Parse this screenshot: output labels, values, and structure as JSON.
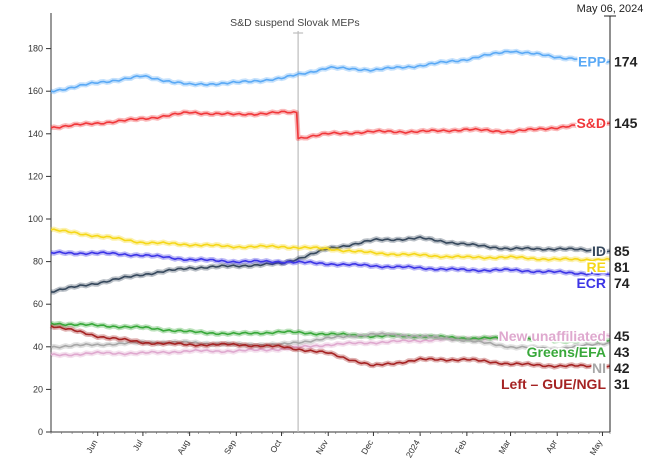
{
  "chart_data": {
    "type": "line",
    "title": "",
    "xlabel": "",
    "ylabel": "",
    "x_start": "2023-05-01",
    "x_end": "2024-05-06",
    "ylim": [
      0,
      190
    ],
    "yticks": [
      0,
      20,
      40,
      60,
      80,
      100,
      120,
      140,
      160,
      180
    ],
    "xticks": [
      {
        "label": "Jun",
        "date": "2023-06-01"
      },
      {
        "label": "Jul",
        "date": "2023-07-01"
      },
      {
        "label": "Aug",
        "date": "2023-08-01"
      },
      {
        "label": "Sep",
        "date": "2023-09-01"
      },
      {
        "label": "Oct",
        "date": "2023-10-01"
      },
      {
        "label": "Nov",
        "date": "2023-11-01"
      },
      {
        "label": "Dec",
        "date": "2023-12-01"
      },
      {
        "label": "2024",
        "date": "2024-01-01"
      },
      {
        "label": "Feb",
        "date": "2024-02-01"
      },
      {
        "label": "Mar",
        "date": "2024-03-01"
      },
      {
        "label": "Apr",
        "date": "2024-04-01"
      },
      {
        "label": "May",
        "date": "2024-05-01"
      }
    ],
    "annotation": {
      "label": "S&D suspend Slovak MEPs",
      "date": "2023-10-12"
    },
    "current_date_label": "May 06, 2024",
    "current_date": "2024-05-06",
    "grid": false,
    "legend": "inline-right",
    "series": [
      {
        "name": "EPP",
        "value": 174,
        "color": "#5aa9f5",
        "points": [
          [
            "2023-05-01",
            160
          ],
          [
            "2023-06-01",
            164
          ],
          [
            "2023-07-01",
            167
          ],
          [
            "2023-08-01",
            163
          ],
          [
            "2023-09-01",
            164
          ],
          [
            "2023-10-01",
            166
          ],
          [
            "2023-11-01",
            171
          ],
          [
            "2023-12-01",
            170
          ],
          [
            "2024-01-01",
            172
          ],
          [
            "2024-02-01",
            175
          ],
          [
            "2024-03-01",
            179
          ],
          [
            "2024-04-01",
            176
          ],
          [
            "2024-05-06",
            174
          ]
        ]
      },
      {
        "name": "S&D",
        "value": 145,
        "color": "#f0373a",
        "points": [
          [
            "2023-05-01",
            143
          ],
          [
            "2023-06-01",
            145
          ],
          [
            "2023-07-01",
            147
          ],
          [
            "2023-08-01",
            150
          ],
          [
            "2023-09-01",
            149
          ],
          [
            "2023-10-01",
            150
          ],
          [
            "2023-10-11",
            150
          ],
          [
            "2023-10-12",
            138
          ],
          [
            "2023-11-01",
            140
          ],
          [
            "2023-12-01",
            141
          ],
          [
            "2024-01-01",
            141
          ],
          [
            "2024-02-01",
            142
          ],
          [
            "2024-03-01",
            141
          ],
          [
            "2024-04-01",
            143
          ],
          [
            "2024-05-06",
            145
          ]
        ]
      },
      {
        "name": "ID",
        "value": 85,
        "color": "#36485c",
        "points": [
          [
            "2023-05-01",
            66
          ],
          [
            "2023-06-01",
            70
          ],
          [
            "2023-07-01",
            74
          ],
          [
            "2023-08-01",
            77
          ],
          [
            "2023-09-01",
            78
          ],
          [
            "2023-10-01",
            79
          ],
          [
            "2023-11-01",
            86
          ],
          [
            "2023-12-01",
            90
          ],
          [
            "2024-01-01",
            91
          ],
          [
            "2024-02-01",
            88
          ],
          [
            "2024-03-01",
            86
          ],
          [
            "2024-04-01",
            86
          ],
          [
            "2024-05-06",
            85
          ]
        ]
      },
      {
        "name": "RE",
        "value": 81,
        "color": "#f5d718",
        "points": [
          [
            "2023-05-01",
            95
          ],
          [
            "2023-06-01",
            92
          ],
          [
            "2023-07-01",
            89
          ],
          [
            "2023-08-01",
            88
          ],
          [
            "2023-09-01",
            87
          ],
          [
            "2023-10-01",
            87
          ],
          [
            "2023-11-01",
            86
          ],
          [
            "2023-12-01",
            84
          ],
          [
            "2024-01-01",
            83
          ],
          [
            "2024-02-01",
            82
          ],
          [
            "2024-03-01",
            82
          ],
          [
            "2024-04-01",
            81
          ],
          [
            "2024-05-06",
            81
          ]
        ]
      },
      {
        "name": "ECR",
        "value": 74,
        "color": "#3d35e6",
        "points": [
          [
            "2023-05-01",
            84
          ],
          [
            "2023-06-01",
            84
          ],
          [
            "2023-07-01",
            83
          ],
          [
            "2023-08-01",
            81
          ],
          [
            "2023-09-01",
            80
          ],
          [
            "2023-10-01",
            80
          ],
          [
            "2023-11-01",
            79
          ],
          [
            "2023-12-01",
            78
          ],
          [
            "2024-01-01",
            77
          ],
          [
            "2024-02-01",
            76
          ],
          [
            "2024-03-01",
            76
          ],
          [
            "2024-04-01",
            75
          ],
          [
            "2024-05-06",
            74
          ]
        ]
      },
      {
        "name": "New unaffiliated",
        "value": 45,
        "color": "#dfa9cf",
        "points": [
          [
            "2023-05-01",
            36
          ],
          [
            "2023-06-01",
            37
          ],
          [
            "2023-07-01",
            37
          ],
          [
            "2023-08-01",
            38
          ],
          [
            "2023-09-01",
            38
          ],
          [
            "2023-10-01",
            39
          ],
          [
            "2023-11-01",
            41
          ],
          [
            "2023-12-01",
            42
          ],
          [
            "2024-01-01",
            43
          ],
          [
            "2024-02-01",
            44
          ],
          [
            "2024-03-01",
            44
          ],
          [
            "2024-04-01",
            45
          ],
          [
            "2024-05-06",
            45
          ]
        ]
      },
      {
        "name": "Greens/EFA",
        "value": 43,
        "color": "#38a83a",
        "points": [
          [
            "2023-05-01",
            51
          ],
          [
            "2023-06-01",
            50
          ],
          [
            "2023-07-01",
            49
          ],
          [
            "2023-08-01",
            47
          ],
          [
            "2023-09-01",
            46
          ],
          [
            "2023-10-01",
            47
          ],
          [
            "2023-11-01",
            46
          ],
          [
            "2023-12-01",
            45
          ],
          [
            "2024-01-01",
            45
          ],
          [
            "2024-02-01",
            44
          ],
          [
            "2024-03-01",
            44
          ],
          [
            "2024-04-01",
            43
          ],
          [
            "2024-05-06",
            43
          ]
        ]
      },
      {
        "name": "NI",
        "value": 42,
        "color": "#a7a7a7",
        "points": [
          [
            "2023-05-01",
            40
          ],
          [
            "2023-06-01",
            41
          ],
          [
            "2023-07-01",
            42
          ],
          [
            "2023-08-01",
            42
          ],
          [
            "2023-09-01",
            41
          ],
          [
            "2023-10-01",
            41
          ],
          [
            "2023-11-01",
            44
          ],
          [
            "2023-12-01",
            46
          ],
          [
            "2024-01-01",
            45
          ],
          [
            "2024-02-01",
            43
          ],
          [
            "2024-03-01",
            40
          ],
          [
            "2024-04-01",
            39
          ],
          [
            "2024-05-06",
            42
          ]
        ]
      },
      {
        "name": "Left – GUE/NGL",
        "value": 31,
        "color": "#a52323",
        "points": [
          [
            "2023-05-01",
            50
          ],
          [
            "2023-06-01",
            45
          ],
          [
            "2023-07-01",
            42
          ],
          [
            "2023-08-01",
            41
          ],
          [
            "2023-09-01",
            41
          ],
          [
            "2023-10-01",
            40
          ],
          [
            "2023-11-01",
            37
          ],
          [
            "2023-12-01",
            31
          ],
          [
            "2024-01-01",
            34
          ],
          [
            "2024-02-01",
            34
          ],
          [
            "2024-03-01",
            32
          ],
          [
            "2024-04-01",
            31
          ],
          [
            "2024-05-06",
            31
          ]
        ]
      }
    ]
  }
}
